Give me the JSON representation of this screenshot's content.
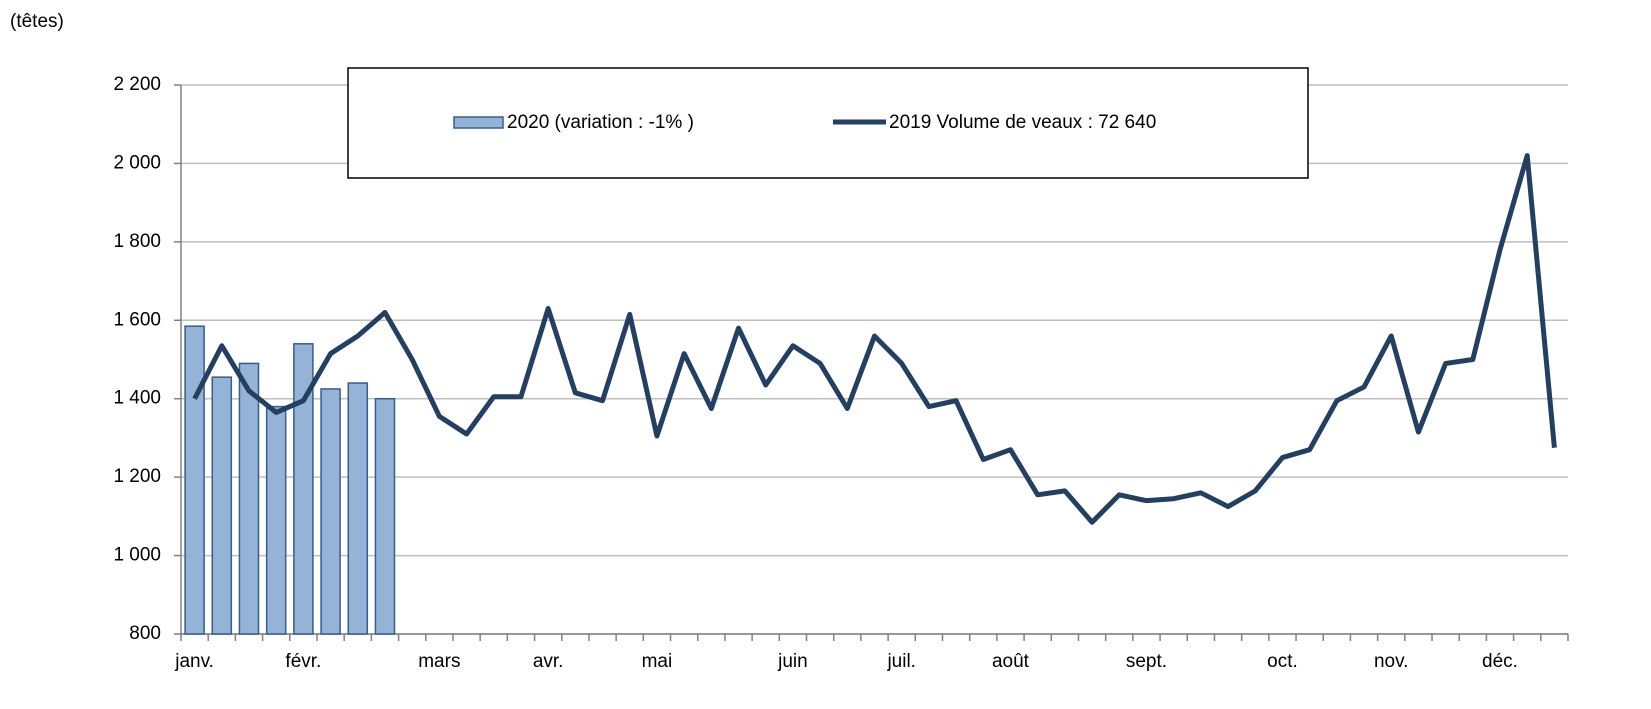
{
  "chart_data": {
    "type": "bar_line",
    "y_unit_label": "(têtes)",
    "categories": [
      "janv.",
      null,
      null,
      null,
      "févr.",
      null,
      null,
      null,
      null,
      "mars",
      null,
      null,
      null,
      "avr.",
      null,
      null,
      null,
      "mai",
      null,
      null,
      null,
      null,
      "juin",
      null,
      null,
      null,
      "juil.",
      null,
      null,
      null,
      "août",
      null,
      null,
      null,
      null,
      "sept.",
      null,
      null,
      null,
      null,
      "oct.",
      null,
      null,
      null,
      "nov.",
      null,
      null,
      null,
      "déc.",
      null,
      null
    ],
    "series": [
      {
        "name": "2020 (variation : -1% )",
        "type": "bar",
        "color": "#95b3d7",
        "edge_color": "#385d8a",
        "values": [
          1585,
          1455,
          1490,
          1380,
          1540,
          1425,
          1440,
          1400,
          null,
          null,
          null,
          null,
          null,
          null,
          null,
          null,
          null,
          null,
          null,
          null,
          null,
          null,
          null,
          null,
          null,
          null,
          null,
          null,
          null,
          null,
          null,
          null,
          null,
          null,
          null,
          null,
          null,
          null,
          null,
          null,
          null,
          null,
          null,
          null,
          null,
          null,
          null,
          null,
          null,
          null,
          null
        ]
      },
      {
        "name": "2019 Volume de veaux : 72 640",
        "type": "line",
        "color": "#243f60",
        "values": [
          1400,
          1535,
          1420,
          1365,
          1395,
          1515,
          1560,
          1620,
          1500,
          1355,
          1310,
          1405,
          1405,
          1630,
          1415,
          1395,
          1615,
          1305,
          1515,
          1375,
          1580,
          1435,
          1535,
          1490,
          1375,
          1560,
          1490,
          1380,
          1395,
          1245,
          1270,
          1155,
          1165,
          1085,
          1155,
          1140,
          1145,
          1160,
          1125,
          1165,
          1250,
          1270,
          1395,
          1430,
          1560,
          1315,
          1490,
          1500,
          1780,
          2020,
          1275
        ]
      }
    ],
    "ylim": [
      800,
      2200
    ],
    "yticks": [
      800,
      {
        "value": 1000,
        "label": "1 000"
      },
      {
        "value": 1200,
        "label": "1 200"
      },
      {
        "value": 1400,
        "label": "1 400"
      },
      {
        "value": 1600,
        "label": "1 600"
      },
      {
        "value": 1800,
        "label": "1 800"
      },
      {
        "value": 2000,
        "label": "2 000"
      },
      {
        "value": 2200,
        "label": "2 200"
      }
    ],
    "grid": true,
    "legend": "top"
  }
}
